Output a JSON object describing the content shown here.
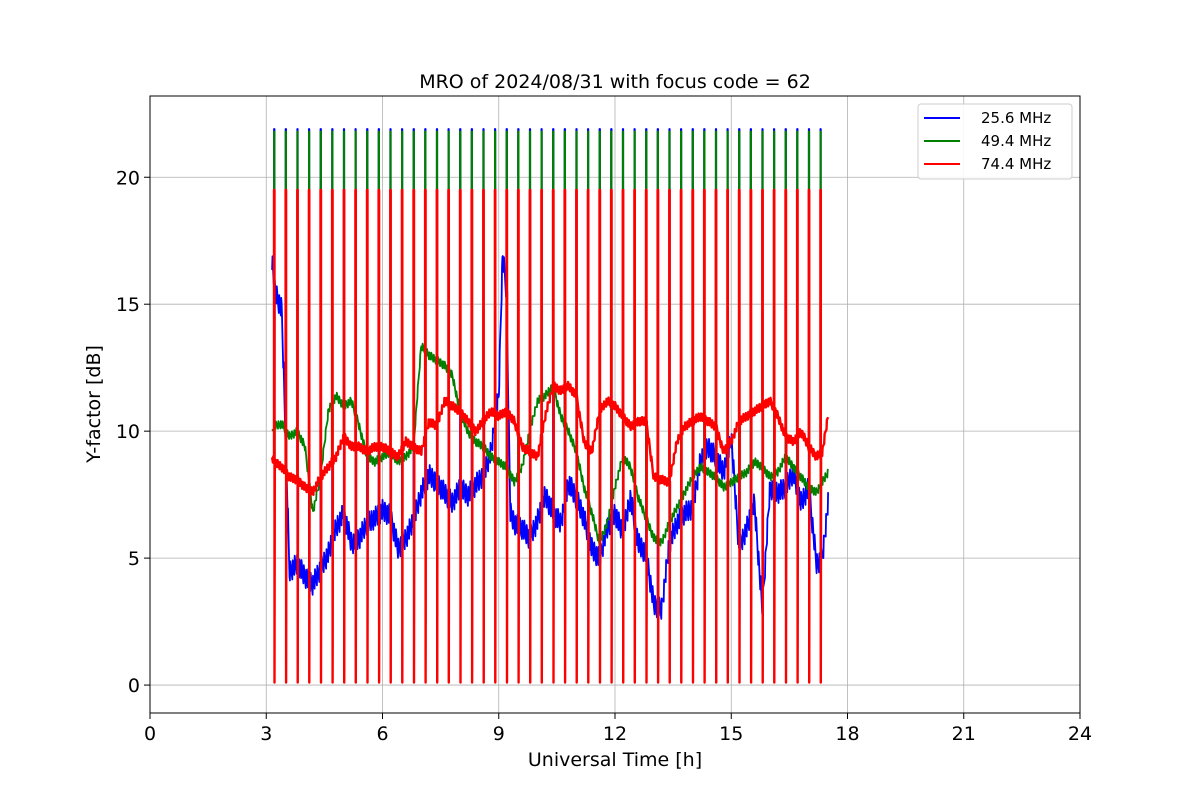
{
  "chart_data": {
    "type": "line",
    "title": "MRO of 2024/08/31 with focus code = 62",
    "xlabel": "Universal Time [h]",
    "ylabel": "Y-factor [dB]",
    "xlim": [
      0,
      24
    ],
    "ylim": [
      -1.1,
      23.2
    ],
    "xticks": [
      0,
      3,
      6,
      9,
      12,
      15,
      18,
      21,
      24
    ],
    "yticks": [
      0,
      5,
      10,
      15,
      20
    ],
    "grid": true,
    "legend_position": "top-right",
    "calibration": {
      "start_h": 3.2,
      "end_h": 17.3,
      "period_h": 0.3,
      "peak_levels": [
        21.9,
        21.8,
        19.5
      ]
    },
    "series": [
      {
        "name": "25.6 MHz",
        "color": "#0000ff",
        "x": [
          3.15,
          3.2,
          3.3,
          3.4,
          3.6,
          3.8,
          4.0,
          4.2,
          4.4,
          4.6,
          4.8,
          5.0,
          5.2,
          5.4,
          5.6,
          5.8,
          6.0,
          6.2,
          6.4,
          6.6,
          6.8,
          7.0,
          7.2,
          7.4,
          7.6,
          7.8,
          8.0,
          8.2,
          8.4,
          8.6,
          8.8,
          9.0,
          9.1,
          9.2,
          9.3,
          9.4,
          9.6,
          9.8,
          10.0,
          10.2,
          10.4,
          10.6,
          10.8,
          11.0,
          11.2,
          11.4,
          11.6,
          11.8,
          12.0,
          12.2,
          12.4,
          12.6,
          12.8,
          13.0,
          13.2,
          13.4,
          13.6,
          13.8,
          14.0,
          14.2,
          14.4,
          14.6,
          14.8,
          15.0,
          15.2,
          15.4,
          15.6,
          15.8,
          16.0,
          16.2,
          16.4,
          16.6,
          16.8,
          17.0,
          17.2,
          17.35,
          17.5
        ],
        "y": [
          16.8,
          15.8,
          15.2,
          14.8,
          4.5,
          4.8,
          4.3,
          4.0,
          4.6,
          5.2,
          6.2,
          6.8,
          5.6,
          5.8,
          6.4,
          6.6,
          6.9,
          6.7,
          5.4,
          5.8,
          6.5,
          7.6,
          8.3,
          8.0,
          7.6,
          7.2,
          7.8,
          7.5,
          7.9,
          8.3,
          9.2,
          11.5,
          17.0,
          15.5,
          6.8,
          6.4,
          6.2,
          5.8,
          6.5,
          7.5,
          6.8,
          6.4,
          8.0,
          7.4,
          6.6,
          5.4,
          5.0,
          6.2,
          6.8,
          6.0,
          7.4,
          5.6,
          5.2,
          3.2,
          3.0,
          5.6,
          6.4,
          6.8,
          7.0,
          8.8,
          9.4,
          9.0,
          8.4,
          9.8,
          5.4,
          6.2,
          7.2,
          3.0,
          7.8,
          7.6,
          7.8,
          8.4,
          7.2,
          7.8,
          4.8,
          5.0,
          7.2
        ]
      },
      {
        "name": "49.4 MHz",
        "color": "#008000",
        "x": [
          3.15,
          3.2,
          3.4,
          3.6,
          3.8,
          4.0,
          4.2,
          4.4,
          4.6,
          4.8,
          5.0,
          5.2,
          5.4,
          5.6,
          5.8,
          6.0,
          6.2,
          6.4,
          6.6,
          6.8,
          7.0,
          7.2,
          7.4,
          7.6,
          7.8,
          8.0,
          8.2,
          8.4,
          8.6,
          8.8,
          9.0,
          9.2,
          9.4,
          9.6,
          9.8,
          10.0,
          10.2,
          10.4,
          10.6,
          10.8,
          11.0,
          11.2,
          11.4,
          11.6,
          11.8,
          12.0,
          12.2,
          12.4,
          12.6,
          12.8,
          13.0,
          13.2,
          13.4,
          13.6,
          13.8,
          14.0,
          14.2,
          14.4,
          14.6,
          14.8,
          15.0,
          15.2,
          15.4,
          15.6,
          15.8,
          16.0,
          16.2,
          16.4,
          16.6,
          16.8,
          17.0,
          17.2,
          17.35,
          17.5
        ],
        "y": [
          10.0,
          10.2,
          10.3,
          9.8,
          10.0,
          9.4,
          6.8,
          8.2,
          10.8,
          11.4,
          11.0,
          11.2,
          10.2,
          9.0,
          8.8,
          9.0,
          9.2,
          8.8,
          9.0,
          9.4,
          13.4,
          13.0,
          12.8,
          12.6,
          12.2,
          10.8,
          10.0,
          9.6,
          9.4,
          9.0,
          8.8,
          8.6,
          8.0,
          8.6,
          10.0,
          11.2,
          11.4,
          11.8,
          10.6,
          10.0,
          9.2,
          7.8,
          6.8,
          5.6,
          6.4,
          7.8,
          9.0,
          8.6,
          7.4,
          6.6,
          5.8,
          5.6,
          6.4,
          7.0,
          7.6,
          8.2,
          8.6,
          8.4,
          8.2,
          7.8,
          8.0,
          8.2,
          8.4,
          8.8,
          8.6,
          8.2,
          8.4,
          9.0,
          8.6,
          8.2,
          7.8,
          7.6,
          8.0,
          8.4
        ]
      },
      {
        "name": "74.4 MHz",
        "color": "#ff0000",
        "x": [
          3.15,
          3.2,
          3.4,
          3.6,
          3.8,
          4.0,
          4.2,
          4.4,
          4.6,
          4.8,
          5.0,
          5.2,
          5.4,
          5.6,
          5.8,
          6.0,
          6.2,
          6.4,
          6.6,
          6.8,
          7.0,
          7.2,
          7.4,
          7.6,
          7.8,
          8.0,
          8.2,
          8.4,
          8.6,
          8.8,
          9.0,
          9.2,
          9.4,
          9.6,
          9.8,
          10.0,
          10.2,
          10.4,
          10.6,
          10.8,
          11.0,
          11.2,
          11.4,
          11.6,
          11.8,
          12.0,
          12.2,
          12.4,
          12.6,
          12.8,
          13.0,
          13.2,
          13.4,
          13.6,
          13.8,
          14.0,
          14.2,
          14.4,
          14.6,
          14.8,
          15.0,
          15.2,
          15.4,
          15.6,
          15.8,
          16.0,
          16.2,
          16.4,
          16.6,
          16.8,
          17.0,
          17.2,
          17.35,
          17.5
        ],
        "y": [
          9.0,
          8.8,
          8.6,
          8.2,
          8.1,
          7.8,
          7.6,
          8.2,
          8.6,
          9.0,
          9.8,
          9.4,
          9.4,
          9.2,
          9.4,
          9.4,
          9.2,
          9.0,
          9.6,
          9.4,
          9.2,
          10.4,
          10.2,
          11.2,
          11.0,
          10.8,
          10.4,
          10.0,
          10.4,
          10.8,
          10.6,
          10.8,
          10.4,
          9.4,
          9.2,
          9.0,
          10.6,
          11.8,
          11.6,
          11.8,
          11.4,
          9.6,
          9.2,
          10.8,
          11.2,
          11.0,
          10.6,
          10.2,
          10.4,
          10.4,
          8.2,
          8.1,
          8.0,
          9.6,
          10.2,
          10.4,
          10.6,
          10.4,
          10.2,
          9.2,
          9.6,
          10.4,
          10.6,
          10.8,
          11.0,
          11.2,
          10.6,
          9.8,
          9.6,
          10.0,
          9.4,
          9.0,
          9.2,
          10.6
        ]
      }
    ]
  }
}
